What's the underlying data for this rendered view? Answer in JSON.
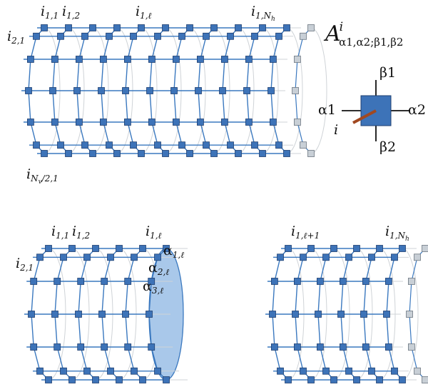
{
  "colors": {
    "node_fill": "#3d73b8",
    "node_stroke": "#1f3f70",
    "bond": "#3a78bf",
    "ghost_node_fill": "#c8cfd6",
    "ghost_node_stroke": "#6c7680",
    "ghost_line": "#cfd3d7",
    "physical_leg": "#a14820",
    "highlight_fill": "#a9c8ea",
    "text": "#111111"
  },
  "top_cylinder": {
    "labels": {
      "i11": {
        "base": "i",
        "sub": "1,1"
      },
      "i12": {
        "base": "i",
        "sub": "1,2"
      },
      "i1l": {
        "base": "i",
        "sub": "1,ℓ"
      },
      "i1Nh": {
        "base": "i",
        "sub": "1,N",
        "subsub": "h"
      },
      "i21": {
        "base": "i",
        "sub": "2,1"
      },
      "iNv": {
        "base": "i",
        "sub": "N",
        "subsub": "v",
        "tail": "/2,1"
      }
    }
  },
  "tensor": {
    "symbol": "A",
    "superscript": "i",
    "subscript": "α1,α2;β1,β2",
    "legs": {
      "left": "α1",
      "right": "α2",
      "top": "β1",
      "bottom": "β2",
      "physical": "i"
    }
  },
  "bottom_left": {
    "labels": {
      "i11": {
        "base": "i",
        "sub": "1,1"
      },
      "i12": {
        "base": "i",
        "sub": "1,2"
      },
      "i1l": {
        "base": "i",
        "sub": "1,ℓ"
      },
      "i21": {
        "base": "i",
        "sub": "2,1"
      },
      "a1": {
        "base": "α",
        "sub": "1,ℓ"
      },
      "a2": {
        "base": "α",
        "sub": "2,ℓ"
      },
      "a3": {
        "base": "α",
        "sub": "3,ℓ"
      }
    }
  },
  "bottom_right": {
    "labels": {
      "i1l1": {
        "base": "i",
        "sub": "1,ℓ+1"
      },
      "i1Nh": {
        "base": "i",
        "sub": "1,N",
        "subsub": "h"
      }
    }
  }
}
